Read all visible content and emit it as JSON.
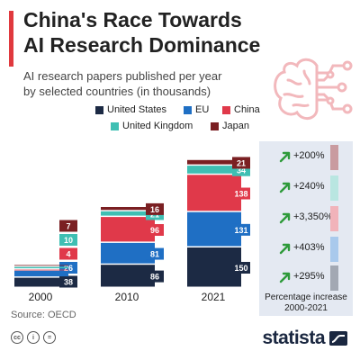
{
  "header": {
    "title_line1": "China's Race Towards",
    "title_line2": "AI Research Dominance",
    "subtitle_line1": "AI research papers published per year",
    "subtitle_line2": "by selected countries (in thousands)"
  },
  "colors": {
    "United States": "#1c2a44",
    "EU": "#1f6fc4",
    "China": "#e0394a",
    "United Kingdom": "#3fbfb3",
    "Japan": "#7a1f22",
    "accent": "#e0393e",
    "panel": "#e4e9f2"
  },
  "chart_data": {
    "type": "bar",
    "stacked": true,
    "categories": [
      "2000",
      "2010",
      "2021"
    ],
    "series": [
      {
        "name": "United States",
        "values": [
          38,
          86,
          150
        ],
        "labels": [
          "38",
          "86",
          "150"
        ]
      },
      {
        "name": "EU",
        "values": [
          26,
          81,
          131
        ],
        "labels": [
          "26",
          "81",
          "131"
        ]
      },
      {
        "name": "China",
        "values": [
          4,
          96,
          138
        ],
        "labels": [
          "4",
          "96",
          "138"
        ]
      },
      {
        "name": "United Kingdom",
        "values": [
          10,
          21,
          34
        ],
        "labels": [
          "10",
          "21",
          "34"
        ]
      },
      {
        "name": "Japan",
        "values": [
          7,
          16,
          21
        ],
        "labels": [
          "7",
          "16",
          "21"
        ]
      }
    ],
    "legend_placement": "top",
    "grid": false
  },
  "increase": {
    "label_line1": "Percentage increase",
    "label_line2": "2000-2021",
    "items": [
      {
        "country": "Japan",
        "text": "+200%"
      },
      {
        "country": "United Kingdom",
        "text": "+240%"
      },
      {
        "country": "China",
        "text": "+3,350%"
      },
      {
        "country": "EU",
        "text": "+403%"
      },
      {
        "country": "United States",
        "text": "+295%"
      }
    ],
    "arrow_color": "#2e9a3a"
  },
  "footer": {
    "source": "Source: OECD",
    "brand": "statista",
    "license_icons": [
      "cc-icon",
      "by-icon",
      "nd-icon"
    ]
  }
}
